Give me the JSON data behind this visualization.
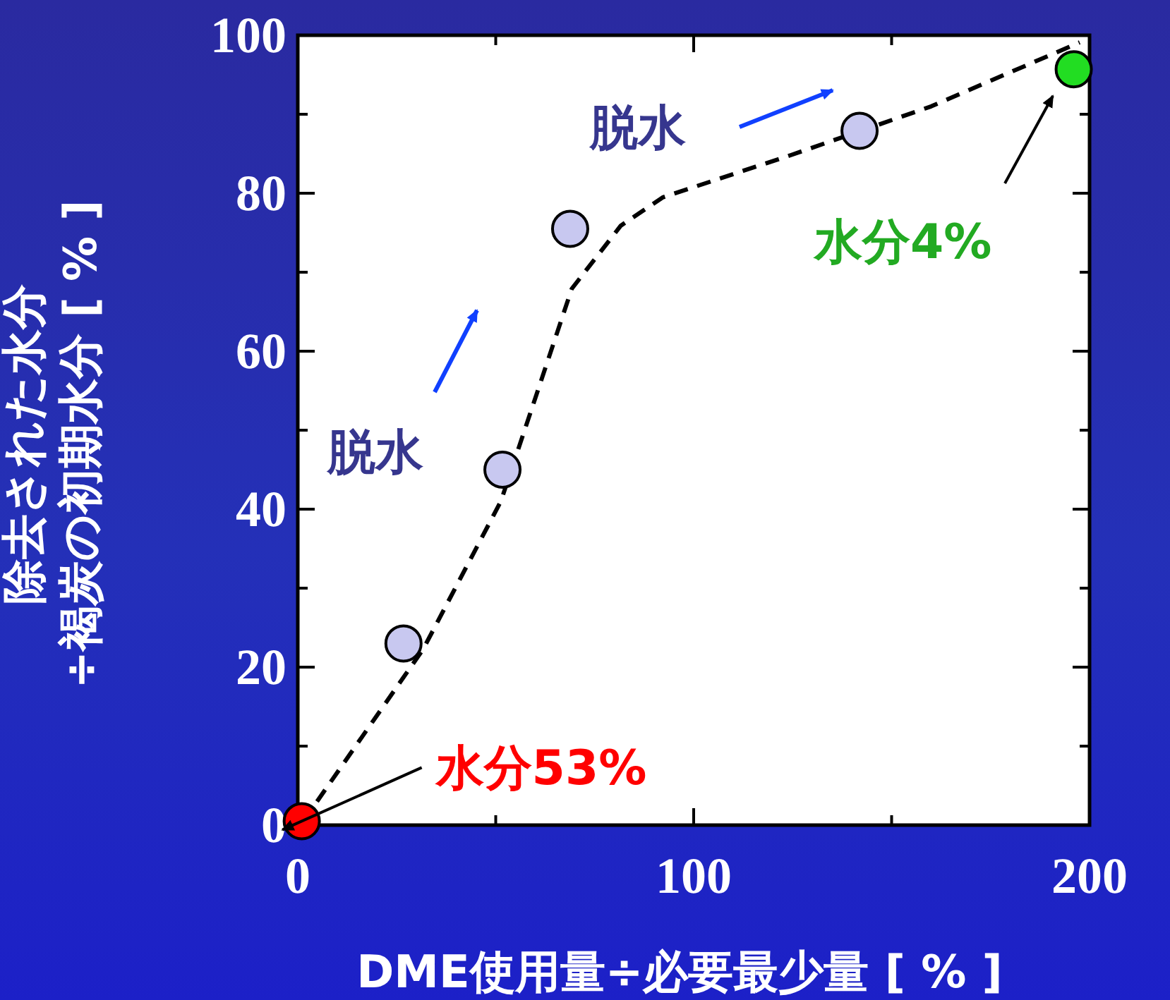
{
  "chart_data": {
    "type": "scatter",
    "xlabel": "DME使用量÷必要最少量 [ % ]",
    "ylabel": "除去された水分\n÷褐炭の初期水分 [ % ]",
    "xlim": [
      0,
      200
    ],
    "ylim": [
      0,
      100
    ],
    "xticks": [
      0,
      100,
      200
    ],
    "yticks": [
      0,
      20,
      40,
      60,
      80,
      100
    ],
    "grid": false,
    "series": [
      {
        "type": "line",
        "line_style": "dashed",
        "color": "#000000",
        "x": [
          1.4,
          31.7,
          51.3,
          69.2,
          81.6,
          92.3,
          124.4,
          160,
          197.5
        ],
        "values": [
          0.5,
          22.3,
          41,
          67.9,
          75.9,
          79.5,
          84.8,
          91,
          99.1
        ]
      },
      {
        "marker": "circle",
        "x": [
          1,
          26.7,
          51.7,
          68.8,
          141.9,
          196
        ],
        "values": [
          0.5,
          23,
          45,
          75.5,
          87.9,
          95.7
        ],
        "colors": [
          "#ff0000",
          "#c8c8f0",
          "#c8c8f0",
          "#c8c8f0",
          "#c8c8f0",
          "#22dd22"
        ]
      }
    ],
    "annotations": [
      {
        "text": "水分53%",
        "x": 1,
        "y": 0.5
      },
      "水分4%",
      "脱水",
      "脱水"
    ]
  }
}
